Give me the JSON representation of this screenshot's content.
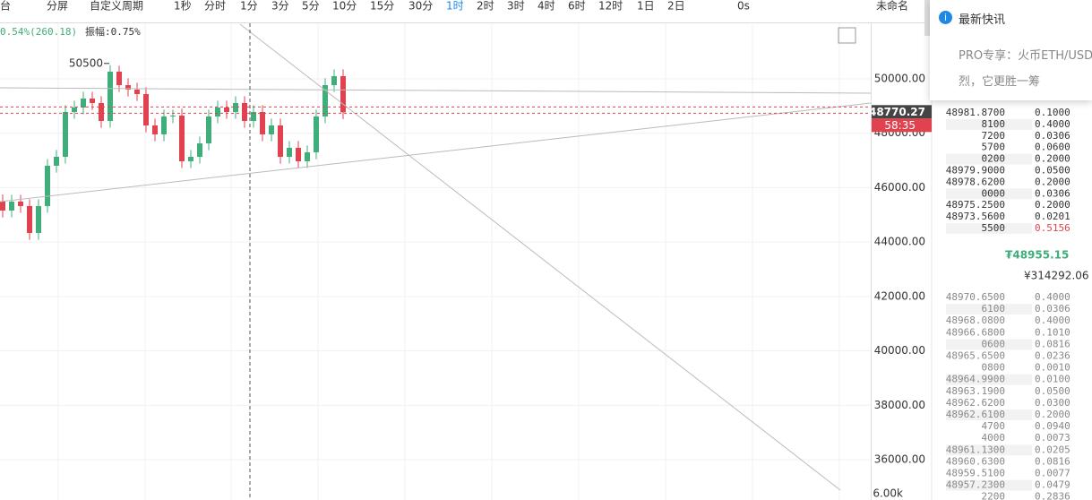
{
  "toolbar": {
    "items": [
      "台",
      "分屏",
      "自定义周期",
      "1秒",
      "分时",
      "1分",
      "3分",
      "5分",
      "10分",
      "15分",
      "30分",
      "1时",
      "2时",
      "3时",
      "4时",
      "6时",
      "12时",
      "1日",
      "2日",
      "0s",
      "未命名"
    ],
    "active": 11
  },
  "info": {
    "change": "0.54%(260.18)",
    "amplitude": "振幅:0.75%"
  },
  "chart_data": {
    "type": "candlestick",
    "up_color": "#3fae7a",
    "down_color": "#e0434f",
    "candles": [
      [
        45500,
        45750,
        44908,
        45158
      ],
      [
        45158,
        45737,
        44908,
        45487
      ],
      [
        45487,
        45737,
        45073,
        45323
      ],
      [
        45323,
        45573,
        44084,
        44334
      ],
      [
        44334,
        45573,
        44084,
        45323
      ],
      [
        45323,
        47055,
        45073,
        46805
      ],
      [
        46805,
        47384,
        46555,
        47134
      ],
      [
        47134,
        49031,
        46884,
        48781
      ],
      [
        48781,
        49196,
        48531,
        48946
      ],
      [
        48946,
        49525,
        48696,
        49275
      ],
      [
        49275,
        49525,
        48861,
        49111
      ],
      [
        49111,
        49361,
        48202,
        48452
      ],
      [
        48452,
        50500,
        48202,
        50264
      ],
      [
        50264,
        50480,
        49519,
        49769
      ],
      [
        49769,
        50019,
        49355,
        49605
      ],
      [
        49605,
        49855,
        49190,
        49440
      ],
      [
        49440,
        49690,
        48037,
        48287
      ],
      [
        48287,
        48537,
        47708,
        47958
      ],
      [
        47958,
        48867,
        47708,
        48617
      ],
      [
        48617,
        48867,
        48367,
        48650
      ],
      [
        48650,
        48900,
        46720,
        46970
      ],
      [
        46970,
        47384,
        46720,
        47134
      ],
      [
        47134,
        47878,
        46884,
        47628
      ],
      [
        47628,
        48867,
        47378,
        48617
      ],
      [
        48617,
        49196,
        48367,
        48946
      ],
      [
        48946,
        49196,
        48531,
        48781
      ],
      [
        48781,
        49361,
        48531,
        49111
      ],
      [
        49111,
        49361,
        48202,
        48452
      ],
      [
        48452,
        49031,
        48202,
        48781
      ],
      [
        48781,
        49031,
        47708,
        47958
      ],
      [
        47958,
        48537,
        47708,
        48287
      ],
      [
        48287,
        48537,
        46884,
        47134
      ],
      [
        47134,
        47714,
        46884,
        47464
      ],
      [
        47464,
        47714,
        46720,
        46970
      ],
      [
        46970,
        47549,
        46720,
        47299
      ],
      [
        47299,
        48867,
        47049,
        48617
      ],
      [
        48617,
        50019,
        48367,
        49769
      ],
      [
        49769,
        50349,
        49519,
        50099
      ],
      [
        50099,
        50349,
        48520,
        48770.27
      ]
    ],
    "ylim": [
      34517,
      52009
    ],
    "yticks": [
      {
        "value": 36000,
        "label": "36000.00"
      },
      {
        "value": 38000,
        "label": "38000.00"
      },
      {
        "value": 40000,
        "label": "40000.00"
      },
      {
        "value": 42000,
        "label": "42000.00"
      },
      {
        "value": 44000,
        "label": "44000.00"
      },
      {
        "value": 46000,
        "label": "46000.00"
      },
      {
        "value": 48000,
        "label": "48000.00"
      },
      {
        "value": 50000,
        "label": "50000.00"
      }
    ],
    "high_label": 50500,
    "current_price": 48770.27,
    "countdown": "58:35",
    "volume_label": "6.00k"
  },
  "orderbook": {
    "asks": [
      [
        "48981.8700",
        "0.1000"
      ],
      [
        "8100",
        "0.4000"
      ],
      [
        "7200",
        "0.0306"
      ],
      [
        "5700",
        "0.0600"
      ],
      [
        "0200",
        "0.2000"
      ],
      [
        "48979.9000",
        "0.0500"
      ],
      [
        "48978.6200",
        "0.2000"
      ],
      [
        "0000",
        "0.0306"
      ],
      [
        "48975.2500",
        "0.2000"
      ],
      [
        "48973.5600",
        "0.0201"
      ],
      [
        "5500",
        "0.5156"
      ]
    ],
    "last_price": "₮48955.15",
    "last_price_cny": "¥314292.06",
    "bids": [
      [
        "48970.6500",
        "0.4000"
      ],
      [
        "6100",
        "0.0306"
      ],
      [
        "48968.0800",
        "0.4000"
      ],
      [
        "48966.6800",
        "0.1010"
      ],
      [
        "0600",
        "0.0816"
      ],
      [
        "48965.6500",
        "0.0236"
      ],
      [
        "0800",
        "0.0010"
      ],
      [
        "48964.9900",
        "0.0100"
      ],
      [
        "48963.1900",
        "0.0500"
      ],
      [
        "48962.6200",
        "0.0300"
      ],
      [
        "48962.6100",
        "0.2000"
      ],
      [
        "4700",
        "0.0940"
      ],
      [
        "4000",
        "0.0073"
      ],
      [
        "48961.1300",
        "0.0205"
      ],
      [
        "48960.6300",
        "0.0816"
      ],
      [
        "48959.5100",
        "0.0077"
      ],
      [
        "48957.2300",
        "0.0479"
      ],
      [
        "2200",
        "0.2836"
      ]
    ]
  },
  "news": {
    "title": "最新快讯",
    "lines": [
      "PRO专享：火币ETH/USD",
      "烈，它更胜一筹"
    ]
  }
}
